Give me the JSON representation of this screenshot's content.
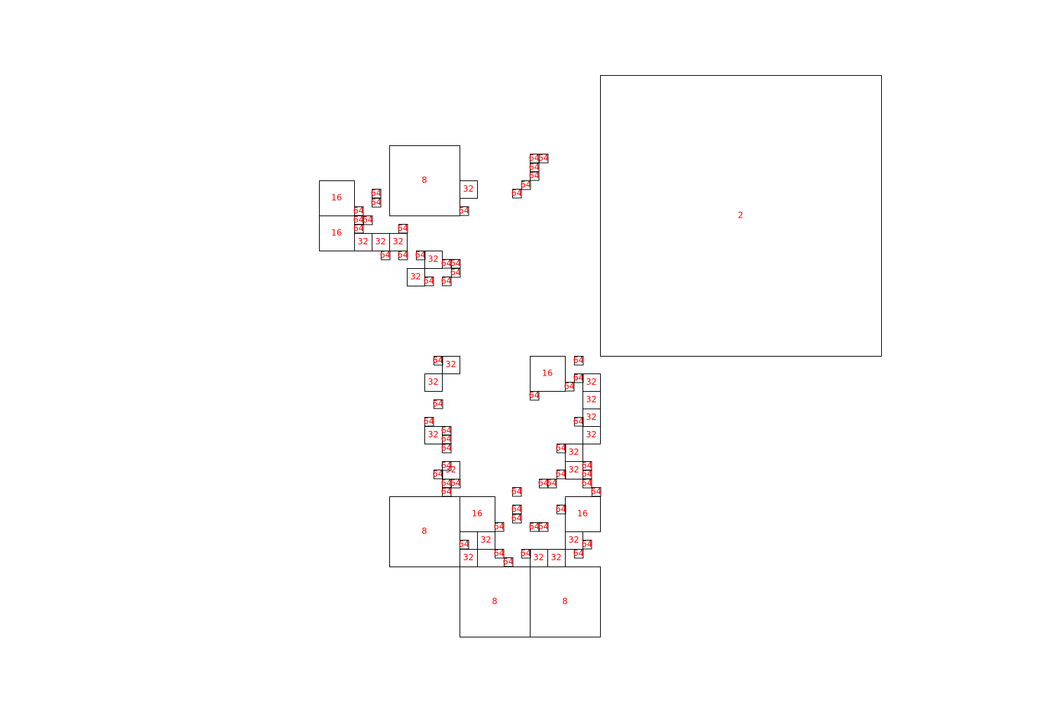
{
  "diagram": {
    "colors": {
      "outline": "#000000",
      "label": "#ff0000",
      "background": "#ffffff"
    },
    "cells": [
      {
        "level": 2
      },
      {
        "level": 8
      },
      {
        "level": 16
      },
      {
        "level": 16
      },
      {
        "level": 32
      },
      {
        "level": 64
      },
      {
        "level": 64
      },
      {
        "level": 64
      },
      {
        "level": 64
      },
      {
        "level": 64
      },
      {
        "level": 64
      },
      {
        "level": 64
      },
      {
        "level": 64
      },
      {
        "level": 32
      },
      {
        "level": 32
      },
      {
        "level": 32
      },
      {
        "level": 64
      },
      {
        "level": 64
      },
      {
        "level": 64
      },
      {
        "level": 64
      },
      {
        "level": 64
      },
      {
        "level": 64
      },
      {
        "level": 32
      },
      {
        "level": 32
      },
      {
        "level": 64
      },
      {
        "level": 64
      },
      {
        "level": 64
      },
      {
        "level": 64
      },
      {
        "level": 64
      },
      {
        "level": 64
      },
      {
        "level": 64
      },
      {
        "level": 64
      },
      {
        "level": 64
      },
      {
        "level": 64
      },
      {
        "level": 64
      },
      {
        "level": 64
      },
      {
        "level": 32
      },
      {
        "level": 32
      },
      {
        "level": 64
      },
      {
        "level": 64
      },
      {
        "level": 32
      },
      {
        "level": 64
      },
      {
        "level": 64
      },
      {
        "level": 64
      },
      {
        "level": 64
      },
      {
        "level": 32
      },
      {
        "level": 64
      },
      {
        "level": 64
      },
      {
        "level": 64
      },
      {
        "level": 16
      },
      {
        "level": 64
      },
      {
        "level": 64
      },
      {
        "level": 64
      },
      {
        "level": 32
      },
      {
        "level": 32
      },
      {
        "level": 64
      },
      {
        "level": 32
      },
      {
        "level": 32
      },
      {
        "level": 64
      },
      {
        "level": 32
      },
      {
        "level": 64
      },
      {
        "level": 32
      },
      {
        "level": 64
      },
      {
        "level": 64
      },
      {
        "level": 64
      },
      {
        "level": 64
      },
      {
        "level": 64
      },
      {
        "level": 64
      },
      {
        "level": 64
      },
      {
        "level": 64
      },
      {
        "level": 64
      },
      {
        "level": 64
      },
      {
        "level": 64
      },
      {
        "level": 64
      },
      {
        "level": 64
      },
      {
        "level": 16
      },
      {
        "level": 32
      },
      {
        "level": 64
      },
      {
        "level": 64
      },
      {
        "level": 8
      },
      {
        "level": 16
      },
      {
        "level": 64
      },
      {
        "level": 32
      },
      {
        "level": 64
      },
      {
        "level": 32
      },
      {
        "level": 64
      },
      {
        "level": 64
      },
      {
        "level": 64
      },
      {
        "level": 32
      },
      {
        "level": 32
      },
      {
        "level": 8
      },
      {
        "level": 8
      }
    ]
  }
}
